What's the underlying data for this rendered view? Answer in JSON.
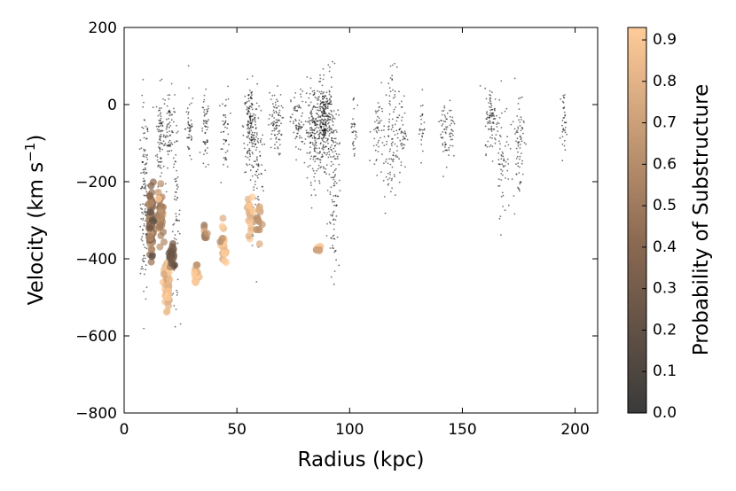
{
  "chart_data": {
    "type": "scatter",
    "title": "",
    "xlabel": "Radius (kpc)",
    "ylabel": "Velocity (km s",
    "ylabel_sup": "−1",
    "ylabel_end": ")",
    "xlim": [
      0,
      210
    ],
    "ylim": [
      -800,
      200
    ],
    "x_ticks": [
      0,
      50,
      100,
      150,
      200
    ],
    "y_ticks": [
      -800,
      -600,
      -400,
      -200,
      0,
      200
    ],
    "x_tick_labels": [
      "0",
      "50",
      "100",
      "150",
      "200"
    ],
    "y_tick_labels": [
      "−800",
      "−600",
      "−400",
      "−200",
      "0",
      "200"
    ],
    "grid": false,
    "colorbar": {
      "label": "Probability of Substructure",
      "range": [
        0,
        0.93
      ],
      "ticks": [
        0.0,
        0.1,
        0.2,
        0.3,
        0.4,
        0.5,
        0.6,
        0.7,
        0.8,
        0.9
      ],
      "tick_labels": [
        "0.0",
        "0.1",
        "0.2",
        "0.3",
        "0.4",
        "0.5",
        "0.6",
        "0.7",
        "0.8",
        "0.9"
      ],
      "color_low": "#3a3a3a",
      "color_high": "#ffcc99"
    },
    "series": [
      {
        "description": "background",
        "color": "#000000",
        "clusters": [
          {
            "x": 9,
            "dx": 1.5,
            "y": -250,
            "dy": 180,
            "n": 130
          },
          {
            "x": 16,
            "dx": 1.5,
            "y": -80,
            "dy": 90,
            "n": 80
          },
          {
            "x": 20,
            "dx": 2,
            "y": -60,
            "dy": 70,
            "n": 70
          },
          {
            "x": 23,
            "dx": 1.5,
            "y": -300,
            "dy": 150,
            "n": 60
          },
          {
            "x": 29,
            "dx": 1.5,
            "y": -60,
            "dy": 70,
            "n": 45
          },
          {
            "x": 36,
            "dx": 1.5,
            "y": -80,
            "dy": 70,
            "n": 55
          },
          {
            "x": 45,
            "dx": 1.5,
            "y": -60,
            "dy": 80,
            "n": 45
          },
          {
            "x": 56,
            "dx": 2.5,
            "y": -60,
            "dy": 80,
            "n": 160
          },
          {
            "x": 59,
            "dx": 2.5,
            "y": -180,
            "dy": 140,
            "n": 90
          },
          {
            "x": 67,
            "dx": 2.5,
            "y": -50,
            "dy": 60,
            "n": 85
          },
          {
            "x": 77,
            "dx": 2.5,
            "y": -50,
            "dy": 60,
            "n": 70
          },
          {
            "x": 84,
            "dx": 3,
            "y": -70,
            "dy": 90,
            "n": 160
          },
          {
            "x": 89,
            "dx": 3,
            "y": -50,
            "dy": 75,
            "n": 280
          },
          {
            "x": 93,
            "dx": 2,
            "y": -200,
            "dy": 170,
            "n": 110
          },
          {
            "x": 102,
            "dx": 1.2,
            "y": -60,
            "dy": 70,
            "n": 30
          },
          {
            "x": 112,
            "dx": 2,
            "y": -70,
            "dy": 70,
            "n": 45
          },
          {
            "x": 118,
            "dx": 2.5,
            "y": -100,
            "dy": 140,
            "n": 90
          },
          {
            "x": 123,
            "dx": 2,
            "y": -70,
            "dy": 70,
            "n": 50
          },
          {
            "x": 132,
            "dx": 1,
            "y": -50,
            "dy": 60,
            "n": 25
          },
          {
            "x": 142,
            "dx": 1.5,
            "y": -70,
            "dy": 70,
            "n": 40
          },
          {
            "x": 145,
            "dx": 1.5,
            "y": -60,
            "dy": 60,
            "n": 30
          },
          {
            "x": 163,
            "dx": 2.5,
            "y": -40,
            "dy": 60,
            "n": 90
          },
          {
            "x": 168,
            "dx": 2.5,
            "y": -130,
            "dy": 110,
            "n": 60
          },
          {
            "x": 175,
            "dx": 2,
            "y": -100,
            "dy": 110,
            "n": 70
          },
          {
            "x": 195,
            "dx": 1,
            "y": -40,
            "dy": 50,
            "n": 35
          }
        ]
      },
      {
        "description": "substructure",
        "clusters": [
          {
            "x": 12,
            "dx": 1.2,
            "y": -310,
            "dy": 80,
            "n": 90,
            "p": 0.45
          },
          {
            "x": 16,
            "dx": 1.5,
            "y": -280,
            "dy": 60,
            "n": 40,
            "p": 0.55
          },
          {
            "x": 19,
            "dx": 1.5,
            "y": -470,
            "dy": 60,
            "n": 60,
            "p": 0.85
          },
          {
            "x": 21,
            "dx": 1.2,
            "y": -400,
            "dy": 40,
            "n": 25,
            "p": 0.35
          },
          {
            "x": 32,
            "dx": 1.2,
            "y": -440,
            "dy": 20,
            "n": 20,
            "p": 0.85
          },
          {
            "x": 36,
            "dx": 0.8,
            "y": -330,
            "dy": 20,
            "n": 10,
            "p": 0.55
          },
          {
            "x": 44,
            "dx": 1.5,
            "y": -360,
            "dy": 60,
            "n": 25,
            "p": 0.85
          },
          {
            "x": 56,
            "dx": 1.5,
            "y": -290,
            "dy": 60,
            "n": 22,
            "p": 0.85
          },
          {
            "x": 60,
            "dx": 1.5,
            "y": -300,
            "dy": 40,
            "n": 15,
            "p": 0.75
          },
          {
            "x": 86,
            "dx": 1.8,
            "y": -370,
            "dy": 10,
            "n": 10,
            "p": 0.75
          }
        ]
      }
    ]
  }
}
